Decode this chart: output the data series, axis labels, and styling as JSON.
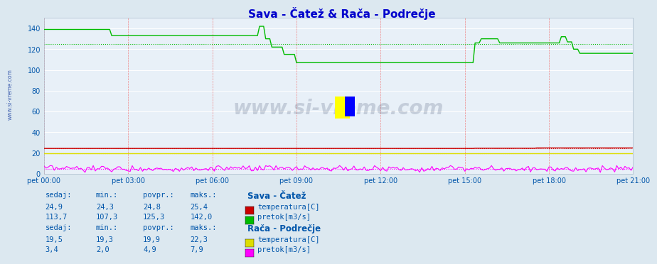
{
  "title": "Sava - Čatež & Rača - Podrečje",
  "title_color": "#0000cc",
  "bg_color": "#dce8f0",
  "plot_bg_color": "#e8f0f8",
  "grid_h_color": "#ffffff",
  "grid_v_color": "#ffaaaa",
  "ylabel_color": "#0055aa",
  "xlabel_color": "#0055aa",
  "ylim": [
    0,
    150
  ],
  "yticks": [
    0,
    20,
    40,
    60,
    80,
    100,
    120,
    140
  ],
  "xtick_labels": [
    "pet 00:00",
    "pet 03:00",
    "pet 06:00",
    "pet 09:00",
    "pet 12:00",
    "pet 15:00",
    "pet 18:00",
    "pet 21:00"
  ],
  "n_points": 288,
  "sava_temp_color": "#cc0000",
  "sava_pretok_color": "#00bb00",
  "raca_temp_color": "#dddd00",
  "raca_pretok_color": "#ff00ff",
  "watermark": "www.si-vreme.com",
  "stats": {
    "sava_temp": {
      "sedaj": 24.9,
      "min": 24.3,
      "povpr": 24.8,
      "maks": 25.4
    },
    "sava_pretok": {
      "sedaj": 113.7,
      "min": 107.3,
      "povpr": 125.3,
      "maks": 142.0
    },
    "raca_temp": {
      "sedaj": 19.5,
      "min": 19.3,
      "povpr": 19.9,
      "maks": 22.3
    },
    "raca_pretok": {
      "sedaj": 3.4,
      "min": 2.0,
      "povpr": 4.9,
      "maks": 7.9
    }
  }
}
